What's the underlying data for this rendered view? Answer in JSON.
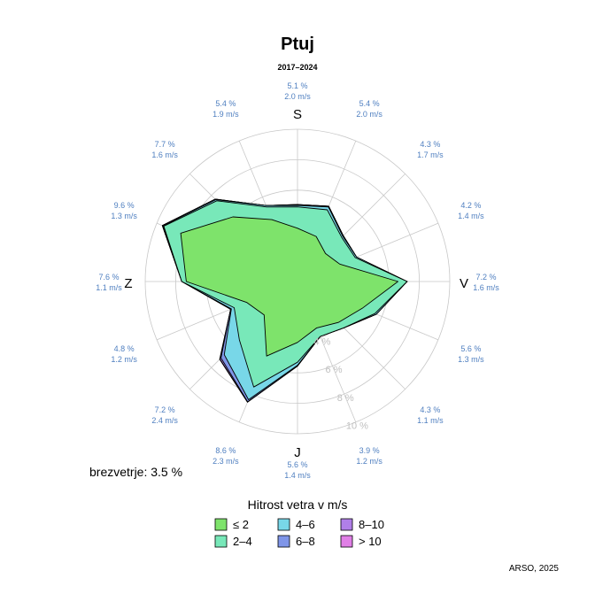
{
  "chart_data": {
    "type": "wind-rose",
    "title": "Ptuj",
    "subtitle": "2017–2024",
    "calm_label": "brezvetrje: 3.5 %",
    "source": "ARSO, 2025",
    "direction_labels": {
      "S": "S",
      "V": "V",
      "J": "J",
      "Z": "Z"
    },
    "ring_labels": [
      "4 %",
      "6 %",
      "8 %",
      "10 %"
    ],
    "ring_values": [
      2,
      4,
      6,
      8,
      10
    ],
    "sectors": [
      {
        "pct": "5.1 %",
        "speed": "2.0 m/s"
      },
      {
        "pct": "5.4 %",
        "speed": "2.0 m/s"
      },
      {
        "pct": "4.3 %",
        "speed": "1.7 m/s"
      },
      {
        "pct": "4.2 %",
        "speed": "1.4 m/s"
      },
      {
        "pct": "7.2 %",
        "speed": "1.6 m/s"
      },
      {
        "pct": "5.6 %",
        "speed": "1.3 m/s"
      },
      {
        "pct": "4.3 %",
        "speed": "1.1 m/s"
      },
      {
        "pct": "3.9 %",
        "speed": "1.2 m/s"
      },
      {
        "pct": "5.6 %",
        "speed": "1.4 m/s"
      },
      {
        "pct": "8.6 %",
        "speed": "2.3 m/s"
      },
      {
        "pct": "7.2 %",
        "speed": "2.4 m/s"
      },
      {
        "pct": "4.8 %",
        "speed": "1.2 m/s"
      },
      {
        "pct": "7.6 %",
        "speed": "1.1 m/s"
      },
      {
        "pct": "9.6 %",
        "speed": "1.3 m/s"
      },
      {
        "pct": "7.7 %",
        "speed": "1.6 m/s"
      },
      {
        "pct": "5.4 %",
        "speed": "1.9 m/s"
      }
    ],
    "series": [
      {
        "name": "≤ 2",
        "color": "#7ee36b",
        "values": [
          3.5,
          3.2,
          2.6,
          3.0,
          6.6,
          4.6,
          3.8,
          3.3,
          4.0,
          5.3,
          3.1,
          3.6,
          7.3,
          8.3,
          6.0,
          4.4
        ]
      },
      {
        "name": "2–4",
        "color": "#78e8b9",
        "values": [
          1.4,
          1.9,
          1.5,
          1.1,
          0.6,
          0.9,
          0.5,
          0.6,
          1.3,
          2.2,
          2.3,
          0.9,
          0.3,
          1.2,
          1.5,
          0.9
        ]
      },
      {
        "name": "4–6",
        "color": "#78d7e8",
        "values": [
          0.1,
          0.2,
          0.1,
          0.1,
          0.0,
          0.1,
          0.0,
          0.0,
          0.2,
          0.9,
          1.4,
          0.2,
          0.0,
          0.05,
          0.1,
          0.1
        ]
      },
      {
        "name": "6–8",
        "color": "#7f95e8",
        "values": [
          0.05,
          0.05,
          0.05,
          0.0,
          0.0,
          0.0,
          0.0,
          0.0,
          0.05,
          0.15,
          0.3,
          0.05,
          0.0,
          0.05,
          0.05,
          0.0
        ]
      },
      {
        "name": "8–10",
        "color": "#b07fe8",
        "values": [
          0,
          0,
          0,
          0,
          0,
          0,
          0,
          0,
          0,
          0.03,
          0.1,
          0,
          0,
          0,
          0,
          0
        ]
      },
      {
        "name": "> 10",
        "color": "#e07fe6",
        "values": [
          0,
          0,
          0,
          0,
          0,
          0,
          0,
          0,
          0,
          0,
          0.03,
          0,
          0,
          0,
          0,
          0
        ]
      }
    ],
    "legend": {
      "title": "Hitrost vetra v m/s",
      "placement": "bottom-center"
    }
  }
}
